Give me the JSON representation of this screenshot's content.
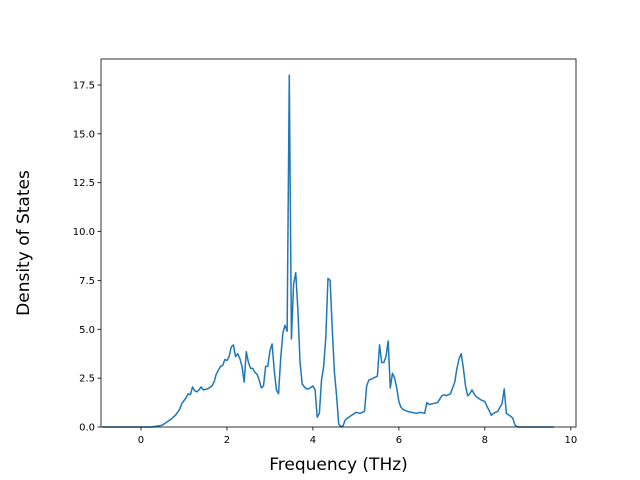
{
  "chart_data": {
    "type": "line",
    "xlabel": "Frequency (THz)",
    "ylabel": "Density of States",
    "color": "#1f77b4",
    "x": [
      -0.9,
      0.25,
      0.3,
      0.4,
      0.5,
      0.6,
      0.7,
      0.8,
      0.9,
      0.95,
      1.0,
      1.05,
      1.1,
      1.15,
      1.2,
      1.25,
      1.3,
      1.35,
      1.4,
      1.45,
      1.55,
      1.65,
      1.7,
      1.75,
      1.8,
      1.85,
      1.9,
      1.95,
      2.0,
      2.05,
      2.1,
      2.15,
      2.2,
      2.25,
      2.3,
      2.35,
      2.4,
      2.45,
      2.5,
      2.55,
      2.6,
      2.65,
      2.7,
      2.75,
      2.8,
      2.85,
      2.9,
      2.95,
      3.0,
      3.05,
      3.1,
      3.15,
      3.2,
      3.25,
      3.3,
      3.35,
      3.4,
      3.45,
      3.5,
      3.55,
      3.6,
      3.65,
      3.7,
      3.75,
      3.8,
      3.85,
      3.9,
      4.0,
      4.05,
      4.1,
      4.15,
      4.2,
      4.25,
      4.3,
      4.35,
      4.4,
      4.45,
      4.5,
      4.55,
      4.6,
      4.65,
      4.7,
      4.75,
      4.8,
      4.9,
      5.0,
      5.1,
      5.2,
      5.25,
      5.3,
      5.4,
      5.5,
      5.55,
      5.6,
      5.65,
      5.7,
      5.75,
      5.8,
      5.85,
      5.9,
      5.95,
      6.0,
      6.05,
      6.1,
      6.2,
      6.3,
      6.4,
      6.5,
      6.6,
      6.65,
      6.7,
      6.8,
      6.9,
      7.0,
      7.05,
      7.1,
      7.2,
      7.3,
      7.35,
      7.4,
      7.45,
      7.5,
      7.55,
      7.6,
      7.65,
      7.7,
      7.75,
      7.8,
      7.9,
      8.0,
      8.05,
      8.1,
      8.15,
      8.2,
      8.3,
      8.4,
      8.45,
      8.5,
      8.6,
      8.65,
      8.7,
      8.75,
      8.8,
      9.6
    ],
    "values": [
      0,
      0,
      0.02,
      0.05,
      0.1,
      0.25,
      0.4,
      0.6,
      0.9,
      1.2,
      1.35,
      1.5,
      1.7,
      1.65,
      2.05,
      1.85,
      1.8,
      1.9,
      2.05,
      1.9,
      1.95,
      2.1,
      2.3,
      2.7,
      2.9,
      3.1,
      3.15,
      3.45,
      3.4,
      3.6,
      4.1,
      4.2,
      3.6,
      3.75,
      3.5,
      3.1,
      2.3,
      3.85,
      3.3,
      3.0,
      3.0,
      2.8,
      2.7,
      2.4,
      2.0,
      2.1,
      3.1,
      3.1,
      3.9,
      4.25,
      2.9,
      1.9,
      1.7,
      3.5,
      4.8,
      5.2,
      4.9,
      18.0,
      4.5,
      7.3,
      7.9,
      6.0,
      3.3,
      2.2,
      2.05,
      1.95,
      1.95,
      2.1,
      1.9,
      0.5,
      0.7,
      2.4,
      3.1,
      4.6,
      7.6,
      7.5,
      5.0,
      2.8,
      1.6,
      0.15,
      0.02,
      0.05,
      0.35,
      0.45,
      0.6,
      0.75,
      0.7,
      0.8,
      2.1,
      2.4,
      2.5,
      2.6,
      4.2,
      3.3,
      3.3,
      3.6,
      4.4,
      2.0,
      2.75,
      2.5,
      2.0,
      1.3,
      1.0,
      0.9,
      0.8,
      0.75,
      0.7,
      0.75,
      0.7,
      1.25,
      1.15,
      1.2,
      1.25,
      1.6,
      1.65,
      1.6,
      1.7,
      2.3,
      3.0,
      3.5,
      3.75,
      3.0,
      2.1,
      1.6,
      1.7,
      1.9,
      1.7,
      1.55,
      1.4,
      1.3,
      1.05,
      0.85,
      0.6,
      0.7,
      0.8,
      1.2,
      1.95,
      0.7,
      0.55,
      0.45,
      0.1,
      0.02,
      0,
      0
    ],
    "xlim": [
      -0.93,
      10.12
    ],
    "ylim": [
      0,
      18.83
    ],
    "xticks": [
      0,
      2,
      4,
      6,
      8,
      10
    ],
    "yticks": [
      {
        "value": 0,
        "label": "0.0"
      },
      {
        "value": 2.5,
        "label": "2.5"
      },
      {
        "value": 5,
        "label": "5.0"
      },
      {
        "value": 7.5,
        "label": "7.5"
      },
      {
        "value": 10,
        "label": "10.0"
      },
      {
        "value": 12.5,
        "label": "12.5"
      },
      {
        "value": 15,
        "label": "15.0"
      },
      {
        "value": 17.5,
        "label": "17.5"
      }
    ]
  }
}
